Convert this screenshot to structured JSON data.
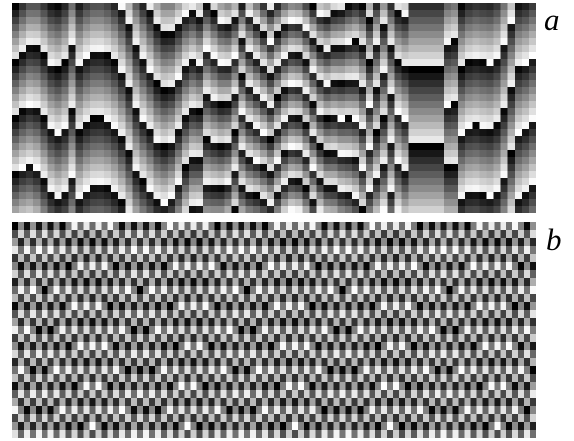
{
  "panels": [
    {
      "label": "a",
      "pattern": "irregular-grayscale-sawtooth-stripes"
    },
    {
      "label": "b",
      "pattern": "regular-grayscale-sawtooth-stripes"
    }
  ],
  "colors": {
    "background": "#ffffff",
    "label": "#000000",
    "pattern_dark": "#000000",
    "pattern_light": "#ffffff"
  }
}
